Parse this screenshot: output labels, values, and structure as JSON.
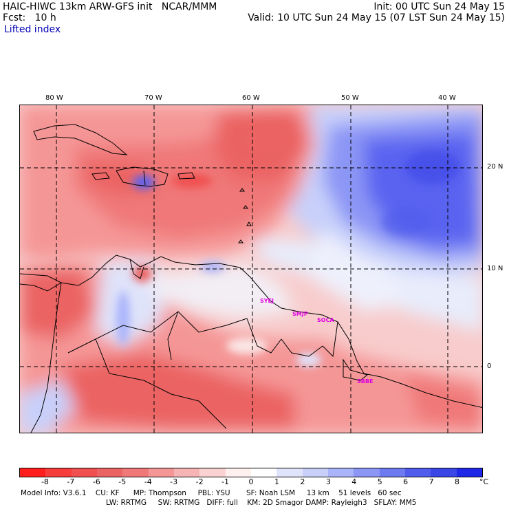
{
  "header": {
    "model_line": "HAIC-HIWC 13km ARW-GFS init   NCAR/MMM",
    "fcst_line": "Fcst:   10 h",
    "field_name": "Lifted index",
    "init_line": "Init: 00 UTC Sun 24 May 15",
    "valid_line": "Valid: 10 UTC Sun 24 May 15 (07 LST Sun 24 May 15)"
  },
  "map": {
    "lon_labels": [
      "80 W",
      "70 W",
      "60 W",
      "50 W",
      "40 W"
    ],
    "lat_labels": [
      "20 N",
      "10 N",
      "0"
    ],
    "stations": [
      "SYEJ",
      "SMJP",
      "SOCA",
      "SBBE"
    ],
    "colors": {
      "ocean_stable": "#5a64f0",
      "unstable_red": "#f06464",
      "grid": "#000000",
      "station_label": "#e000e0"
    }
  },
  "colorbar": {
    "labels": [
      "-8",
      "-7",
      "-6",
      "-5",
      "-4",
      "-3",
      "-2",
      "-1",
      "0",
      "1",
      "2",
      "3",
      "4",
      "5",
      "6",
      "7",
      "8"
    ],
    "unit": "°C",
    "colors": [
      "#ff1e1e",
      "#f73c3c",
      "#f05050",
      "#eb6464",
      "#f07878",
      "#f59696",
      "#f7b4b4",
      "#fad2d2",
      "#fff0f0",
      "#ffffff",
      "#e0e4fa",
      "#c8d0fa",
      "#aab4fa",
      "#8c96f5",
      "#6e7aef",
      "#505ceb",
      "#3a46e6",
      "#1e28e6"
    ]
  },
  "footer": {
    "line1": "Model Info: V3.6.1    CU: KF      MP: Thompson     PBL: YSU       SF: Noah LSM     13 km    51 levels   60 sec",
    "line2": "LW: RRTMG     SW: RRTMG   DIFF: full    KM: 2D Smagor DAMP: Rayleigh3   SFLAY: MM5"
  }
}
